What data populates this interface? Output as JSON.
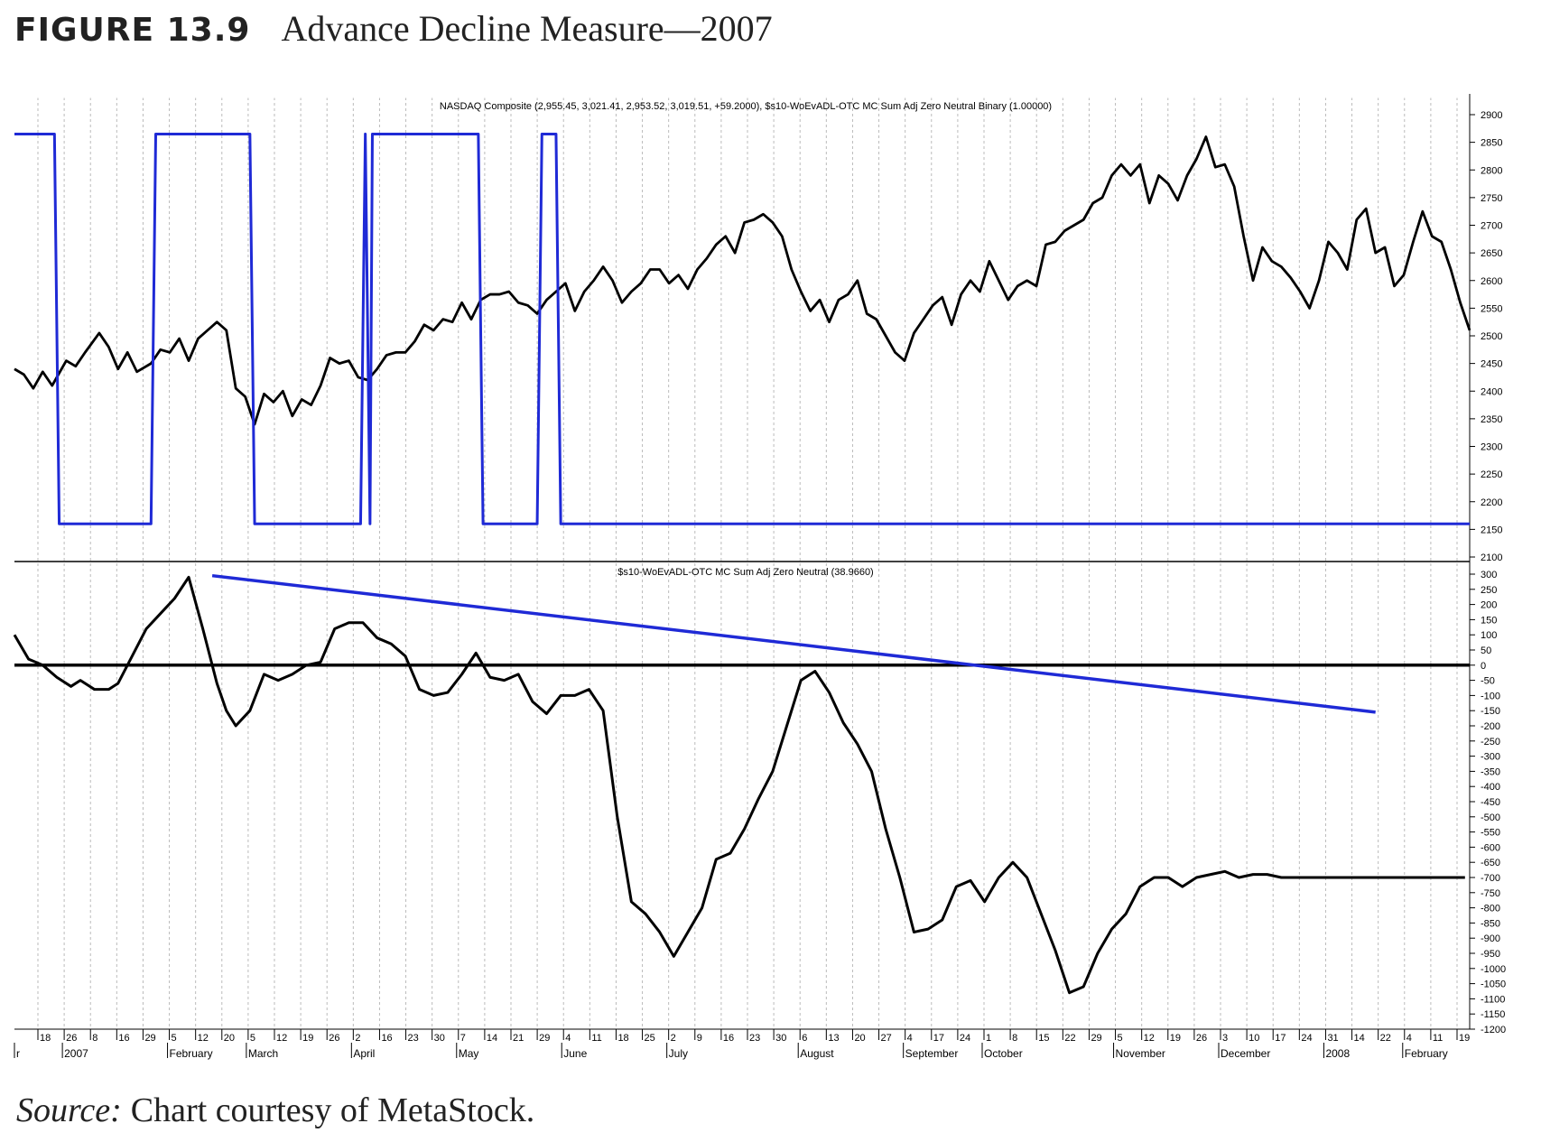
{
  "figure": {
    "number": "FIGURE 13.9",
    "title": "Advance Decline Measure—2007",
    "source_label": "Source:",
    "source_text": "Chart courtesy of MetaStock."
  },
  "chart_data": [
    {
      "type": "line",
      "title": "NASDAQ Composite (2,955.45, 3,021.41, 2,953.52, 3,019.51, +59.2000), $s10-WoEvADL-OTC MC Sum Adj Zero Neutral Binary  (1.00000)",
      "ylim": [
        2100,
        2900
      ],
      "yticks": [
        2100,
        2150,
        2200,
        2250,
        2300,
        2350,
        2400,
        2450,
        2500,
        2550,
        2600,
        2650,
        2700,
        2750,
        2800,
        2850,
        2900
      ],
      "grid": "vertical dashed",
      "series": [
        {
          "color": "#000000",
          "x": [
            0,
            2,
            4,
            6,
            8,
            11,
            13,
            15,
            18,
            20,
            22,
            24,
            26,
            29,
            31,
            33,
            35,
            37,
            39,
            41,
            43,
            45,
            47,
            49,
            51,
            53,
            55,
            57,
            59,
            61,
            63,
            65,
            67,
            69,
            71,
            73,
            75,
            77,
            79,
            81,
            83,
            85,
            87,
            89,
            91,
            93,
            95,
            97,
            99,
            101,
            103,
            105,
            107,
            109,
            111,
            113,
            115,
            117,
            119,
            121,
            123,
            125,
            127,
            129,
            131,
            133,
            135,
            137,
            139,
            141,
            143,
            145,
            147,
            149,
            151,
            153,
            155,
            157,
            159,
            161,
            163,
            165,
            167,
            169,
            171,
            173,
            175,
            177,
            179,
            181,
            183,
            185,
            187,
            189,
            191,
            193,
            195,
            197,
            199,
            201,
            203,
            205,
            207,
            209,
            211,
            213,
            215,
            217,
            219,
            221,
            223,
            225,
            227,
            229,
            231,
            233,
            235,
            237,
            239,
            241,
            243,
            245,
            247,
            249,
            251,
            253,
            255,
            257,
            259,
            261,
            263,
            265,
            267,
            269,
            271,
            273,
            275,
            277,
            279,
            281,
            283,
            285,
            287,
            289,
            291,
            293,
            295,
            297,
            299,
            301,
            303,
            305,
            307,
            309
          ],
          "values": [
            2440,
            2430,
            2405,
            2435,
            2410,
            2455,
            2445,
            2470,
            2505,
            2480,
            2440,
            2470,
            2435,
            2450,
            2475,
            2470,
            2495,
            2455,
            2495,
            2510,
            2525,
            2510,
            2405,
            2390,
            2340,
            2395,
            2380,
            2400,
            2355,
            2385,
            2375,
            2410,
            2460,
            2450,
            2455,
            2425,
            2420,
            2440,
            2465,
            2470,
            2470,
            2490,
            2520,
            2510,
            2530,
            2525,
            2560,
            2530,
            2565,
            2575,
            2575,
            2580,
            2560,
            2555,
            2540,
            2565,
            2580,
            2595,
            2545,
            2580,
            2600,
            2625,
            2600,
            2560,
            2580,
            2595,
            2620,
            2620,
            2595,
            2610,
            2585,
            2620,
            2640,
            2665,
            2680,
            2650,
            2705,
            2710,
            2720,
            2705,
            2680,
            2620,
            2580,
            2545,
            2565,
            2525,
            2565,
            2575,
            2600,
            2540,
            2530,
            2500,
            2470,
            2455,
            2505,
            2530,
            2555,
            2570,
            2520,
            2575,
            2600,
            2580,
            2635,
            2600,
            2565,
            2590,
            2600,
            2590,
            2665,
            2670,
            2690,
            2700,
            2710,
            2740,
            2750,
            2790,
            2810,
            2790,
            2810,
            2740,
            2790,
            2775,
            2745,
            2790,
            2820,
            2860,
            2805,
            2810,
            2770,
            2680,
            2600,
            2660,
            2635,
            2625,
            2605,
            2580,
            2550,
            2600,
            2670,
            2650,
            2620,
            2710,
            2730,
            2650,
            2660,
            2590,
            2610,
            2670,
            2725,
            2680,
            2670,
            2620,
            2560,
            2510
          ],
          "values_note": ""
        },
        {
          "color": "#1f2ad6",
          "x": [
            0,
            8.5,
            9.5,
            29,
            30,
            50,
            51,
            73.5,
            74.5,
            75.5,
            76,
            77,
            98.5,
            99.5,
            111,
            112,
            115,
            116,
            309
          ],
          "values": [
            2865,
            2865,
            2160,
            2160,
            2865,
            2865,
            2160,
            2160,
            2865,
            2160,
            2865,
            2865,
            2865,
            2160,
            2160,
            2865,
            2865,
            2160,
            2160
          ]
        }
      ]
    },
    {
      "type": "line",
      "title": "$s10-WoEvADL-OTC MC Sum Adj Zero Neutral (38.9660)",
      "ylim": [
        -1200,
        300
      ],
      "yticks": [
        300,
        250,
        200,
        150,
        100,
        50,
        0,
        -50,
        -100,
        -150,
        -200,
        -250,
        -300,
        -350,
        -400,
        -450,
        -500,
        -550,
        -600,
        -650,
        -700,
        -750,
        -800,
        -850,
        -900,
        -950,
        -1000,
        -1050,
        -1100,
        -1150,
        -1200
      ],
      "series": [
        {
          "color": "#000000",
          "x": [
            0,
            3,
            6,
            9,
            12,
            14,
            17,
            20,
            22,
            25,
            28,
            31,
            34,
            37,
            40,
            43,
            45,
            47,
            50,
            53,
            56,
            59,
            62,
            65,
            68,
            71,
            74,
            77,
            80,
            83,
            86,
            89,
            92,
            95,
            98,
            101,
            104,
            107,
            110,
            113,
            116,
            119,
            122,
            125,
            128,
            131,
            134,
            137,
            140,
            143,
            146,
            149,
            152,
            155,
            158,
            161,
            164,
            167,
            170,
            173,
            176,
            179,
            182,
            185,
            188,
            191,
            194,
            197,
            200,
            203,
            206,
            209,
            212,
            215,
            218,
            221,
            224,
            227,
            230,
            233,
            236,
            239,
            242,
            245,
            248,
            251,
            254,
            257,
            260,
            263,
            266,
            269,
            272,
            275,
            278,
            281,
            284,
            287,
            290,
            293,
            296,
            299,
            302,
            305,
            308
          ],
          "values": [
            100,
            20,
            0,
            -40,
            -70,
            -50,
            -80,
            -80,
            -60,
            30,
            120,
            170,
            220,
            290,
            120,
            -60,
            -150,
            -200,
            -150,
            -30,
            -50,
            -30,
            0,
            10,
            120,
            140,
            140,
            90,
            70,
            30,
            -80,
            -100,
            -90,
            -30,
            40,
            -40,
            -50,
            -30,
            -120,
            -160,
            -100,
            -100,
            -80,
            -150,
            -500,
            -780,
            -820,
            -880,
            -960,
            -880,
            -800,
            -640,
            -620,
            -540,
            -440,
            -350,
            -200,
            -50,
            -20,
            -90,
            -190,
            -260,
            -350,
            -540,
            -700,
            -880,
            -870,
            -840,
            -730,
            -710,
            -780,
            -700,
            -650,
            -700,
            -820,
            -940,
            -1080,
            -1060,
            -950,
            -870,
            -820,
            -730,
            -700,
            -700,
            -730,
            -700,
            -690,
            -680,
            -700,
            -690,
            -690,
            -700,
            -700,
            -700,
            -700,
            -700,
            -700,
            -700,
            -700,
            -700,
            -700,
            -700,
            -700,
            -700,
            -700
          ],
          "values_note": ""
        }
      ],
      "trendline": {
        "color": "#1f2ad6",
        "points": [
          [
            42,
            295
          ],
          [
            289,
            -155
          ]
        ]
      },
      "zero_line": 0
    }
  ],
  "x_axis": {
    "day_ticks": [
      "18",
      "26",
      "8",
      "16",
      "29",
      "5",
      "12",
      "20",
      "5",
      "12",
      "19",
      "26",
      "2",
      "16",
      "23",
      "30",
      "7",
      "14",
      "21",
      "29",
      "4",
      "11",
      "18",
      "25",
      "2",
      "9",
      "16",
      "23",
      "30",
      "6",
      "13",
      "20",
      "27",
      "4",
      "17",
      "24",
      "1",
      "8",
      "15",
      "22",
      "29",
      "5",
      "12",
      "19",
      "26",
      "3",
      "10",
      "17",
      "24",
      "31",
      "14",
      "22",
      "4",
      "11",
      "19"
    ],
    "month_labels": [
      "r",
      "2007",
      "February",
      "March",
      "April",
      "May",
      "June",
      "July",
      "August",
      "September",
      "October",
      "November",
      "December",
      "2008",
      "February"
    ]
  }
}
